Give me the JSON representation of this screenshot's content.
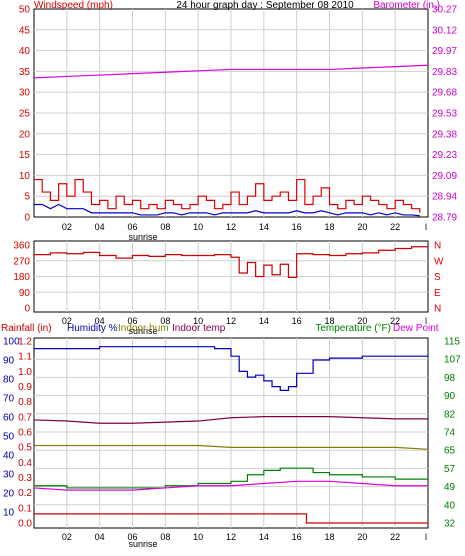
{
  "top": {
    "left_label": "Windspeed (mph)",
    "title": "24 hour graph day : September 08 2010",
    "right_label": "Barometer (in.)",
    "left_ticks": [
      "50",
      "45",
      "40",
      "35",
      "30",
      "25",
      "20",
      "15",
      "10",
      "5",
      "0"
    ],
    "right_ticks": [
      "30.27",
      "30.12",
      "29.97",
      "29.83",
      "29.68",
      "29.53",
      "29.38",
      "29.23",
      "29.09",
      "28.94",
      "28.79"
    ],
    "hour_ticks": [
      "02",
      "04",
      "06",
      "08",
      "10",
      "12",
      "14",
      "16",
      "18",
      "20",
      "22"
    ],
    "sunrise_label": "sunrise",
    "end_tick": "l"
  },
  "mid": {
    "left_ticks": [
      "360",
      "270",
      "180",
      "90",
      "0"
    ],
    "right_letters": [
      "N",
      "W",
      "S",
      "E",
      "N"
    ],
    "hour_ticks": [
      "02",
      "04",
      "06",
      "08",
      "10",
      "12",
      "14",
      "16",
      "18",
      "20",
      "22"
    ],
    "sunrise_label": "sunrise",
    "end_tick": "l"
  },
  "bottom": {
    "rain_label": "Rainfall (in)",
    "humidity_label": "Humidity %",
    "indoor_hum_label": "Indoor hum",
    "indoor_temp_label": "Indoor temp",
    "temperature_label": "Temperature (°F)",
    "dew_label": "Dew Point",
    "rain_ticks": [
      "1.2",
      "1.1",
      "1.0",
      "0.9",
      "0.8",
      "0.7",
      "0.6",
      "0.5",
      "0.4",
      "0.3",
      "0.2",
      "0.1",
      "0.0"
    ],
    "hum_ticks": [
      "100",
      "90",
      "80",
      "70",
      "60",
      "50",
      "40",
      "30",
      "20",
      "10"
    ],
    "temp_ticks": [
      "115",
      "107",
      "98",
      "90",
      "82",
      "74",
      "65",
      "57",
      "49",
      "40",
      "32"
    ],
    "hour_ticks": [
      "02",
      "04",
      "06",
      "08",
      "10",
      "12",
      "14",
      "16",
      "18",
      "20",
      "22"
    ],
    "sunrise_label": "sunrise",
    "end_tick": "l"
  },
  "colors": {
    "wind": "#dd0000",
    "gust": "#dd0000",
    "avg_wind": "#0000cc",
    "barometer": "#dd00dd",
    "direction": "#cc0000",
    "humidity": "#0000bb",
    "indoor_temp": "#800040",
    "indoor_hum": "#808000",
    "temperature": "#008000",
    "dew_point": "#dd00dd",
    "rainfall": "#cc0000",
    "grid": "#cfcfcf"
  },
  "chart_data": [
    {
      "type": "line",
      "title": "24 hour graph day : September 08 2010",
      "xlabel": "",
      "x_range_hours": [
        0,
        24
      ],
      "y_left": {
        "label": "Windspeed (mph)",
        "range": [
          0,
          50
        ]
      },
      "y_right": {
        "label": "Barometer (in.)",
        "range": [
          28.79,
          30.27
        ]
      },
      "series": [
        {
          "name": "Barometer (in.)",
          "axis": "right",
          "x": [
            0,
            2,
            4,
            6,
            8,
            10,
            12,
            14,
            16,
            18,
            20,
            22,
            24
          ],
          "y": [
            29.78,
            29.79,
            29.8,
            29.81,
            29.82,
            29.83,
            29.84,
            29.84,
            29.84,
            29.84,
            29.85,
            29.86,
            29.87
          ]
        },
        {
          "axis": "left",
          "x": [
            0,
            0.5,
            1,
            1.5,
            2,
            2.5,
            3,
            3.5,
            4,
            4.5,
            5,
            5.5,
            6,
            6.5,
            7,
            7.5,
            8,
            8.5,
            9,
            9.5,
            10,
            10.5,
            11,
            11.5,
            12,
            12.5,
            13,
            13.5,
            14,
            14.5,
            15,
            15.5,
            16,
            16.5,
            17,
            17.5,
            18,
            18.5,
            19,
            19.5,
            20,
            20.5,
            21,
            21.5,
            22,
            22.5,
            23,
            23.5
          ],
          "y": [
            9,
            6,
            4,
            8,
            5,
            9,
            6,
            3,
            4,
            2,
            5,
            3,
            4,
            2,
            3,
            2,
            4,
            3,
            2,
            3,
            5,
            4,
            2,
            3,
            6,
            3,
            5,
            8,
            4,
            5,
            6,
            4,
            9,
            3,
            5,
            7,
            3,
            2,
            4,
            3,
            5,
            4,
            3,
            2,
            4,
            3,
            2,
            1
          ]
        },
        {
          "axis": "left",
          "x": [
            0,
            0.5,
            1,
            1.5,
            2,
            2.5,
            3,
            3.5,
            4,
            4.5,
            5,
            5.5,
            6,
            6.5,
            7,
            7.5,
            8,
            8.5,
            9,
            9.5,
            10,
            10.5,
            11,
            11.5,
            12,
            12.5,
            13,
            13.5,
            14,
            14.5,
            15,
            15.5,
            16,
            16.5,
            17,
            17.5,
            18,
            18.5,
            19,
            19.5,
            20,
            20.5,
            21,
            21.5,
            22,
            22.5,
            23,
            23.5
          ],
          "y": [
            3,
            3,
            2,
            3,
            2,
            2,
            2,
            1,
            1,
            1,
            1,
            1,
            1,
            0.5,
            0.5,
            0.5,
            1,
            1,
            0.5,
            1,
            1,
            1,
            0.5,
            1,
            1,
            1,
            1,
            1.5,
            1,
            1,
            1,
            1,
            1.5,
            1,
            1,
            1.5,
            1,
            0.5,
            1,
            1,
            1,
            0.5,
            1,
            0.5,
            1,
            0.5,
            0.5,
            0.3
          ]
        }
      ]
    },
    {
      "type": "line",
      "x_range_hours": [
        0,
        24
      ],
      "y_left": {
        "range": [
          0,
          360
        ]
      },
      "series": [
        {
          "axis": "left",
          "x": [
            0,
            1,
            2,
            3,
            4,
            5,
            6,
            7,
            8,
            9,
            10,
            11,
            12,
            12.5,
            13,
            13.5,
            14,
            14.5,
            15,
            15.5,
            16,
            17,
            18,
            19,
            20,
            21,
            22,
            23,
            24
          ],
          "y": [
            305,
            315,
            310,
            318,
            300,
            285,
            300,
            295,
            305,
            300,
            300,
            305,
            290,
            200,
            260,
            180,
            245,
            190,
            250,
            175,
            310,
            305,
            300,
            310,
            315,
            330,
            340,
            350,
            350
          ]
        }
      ]
    },
    {
      "type": "line",
      "x_range_hours": [
        0,
        24
      ],
      "y_left": {
        "label": "Rainfall (in)",
        "range": [
          0,
          1.2
        ]
      },
      "y_humidity": {
        "label": "Humidity %",
        "range": [
          10,
          100
        ]
      },
      "y_right": {
        "label": "Temperature (°F)",
        "range": [
          32,
          115
        ]
      },
      "series": [
        {
          "name": "Humidity %",
          "axis": "humidity",
          "x": [
            0,
            2,
            4,
            6,
            8,
            10,
            11,
            12,
            12.5,
            13,
            13.5,
            14,
            14.5,
            15,
            15.5,
            16,
            17,
            18,
            20,
            22,
            24
          ],
          "y": [
            96,
            96,
            97,
            97,
            97,
            97,
            96,
            92,
            84,
            81,
            82,
            79,
            76,
            74,
            76,
            83,
            90,
            91,
            92,
            92,
            93
          ]
        },
        {
          "name": "Indoor temp",
          "axis": "temp",
          "x": [
            0,
            2,
            4,
            6,
            8,
            10,
            12,
            14,
            16,
            18,
            20,
            22,
            24
          ],
          "y": [
            79,
            78.5,
            77.5,
            77.5,
            78,
            78.5,
            80,
            80.5,
            80.5,
            80.5,
            80,
            79.5,
            79.5
          ]
        },
        {
          "name": "Indoor hum",
          "axis": "humidity",
          "x": [
            0,
            2,
            4,
            6,
            8,
            10,
            12,
            14,
            16,
            18,
            20,
            22,
            24
          ],
          "y": [
            45,
            45,
            45,
            45,
            45,
            45,
            44,
            44,
            44,
            44,
            44,
            44,
            43
          ]
        },
        {
          "name": "Temperature (°F)",
          "axis": "temp",
          "x": [
            0,
            2,
            4,
            6,
            8,
            10,
            12,
            13,
            14,
            15,
            16,
            17,
            18,
            20,
            22,
            24
          ],
          "y": [
            49,
            48,
            48,
            48,
            49,
            50,
            51,
            54,
            56,
            57,
            57,
            55,
            54,
            53,
            52,
            52
          ]
        },
        {
          "name": "Dew Point",
          "axis": "temp",
          "x": [
            0,
            2,
            4,
            6,
            8,
            10,
            12,
            14,
            16,
            18,
            20,
            22,
            24
          ],
          "y": [
            48,
            47,
            47,
            47,
            48,
            49,
            49,
            50,
            51,
            51,
            50,
            49,
            49
          ]
        },
        {
          "name": "Rainfall (in)",
          "axis": "left",
          "x": [
            0,
            16.6,
            16.6,
            24
          ],
          "y": [
            0.06,
            0.06,
            0.0,
            0.0
          ]
        }
      ]
    }
  ]
}
